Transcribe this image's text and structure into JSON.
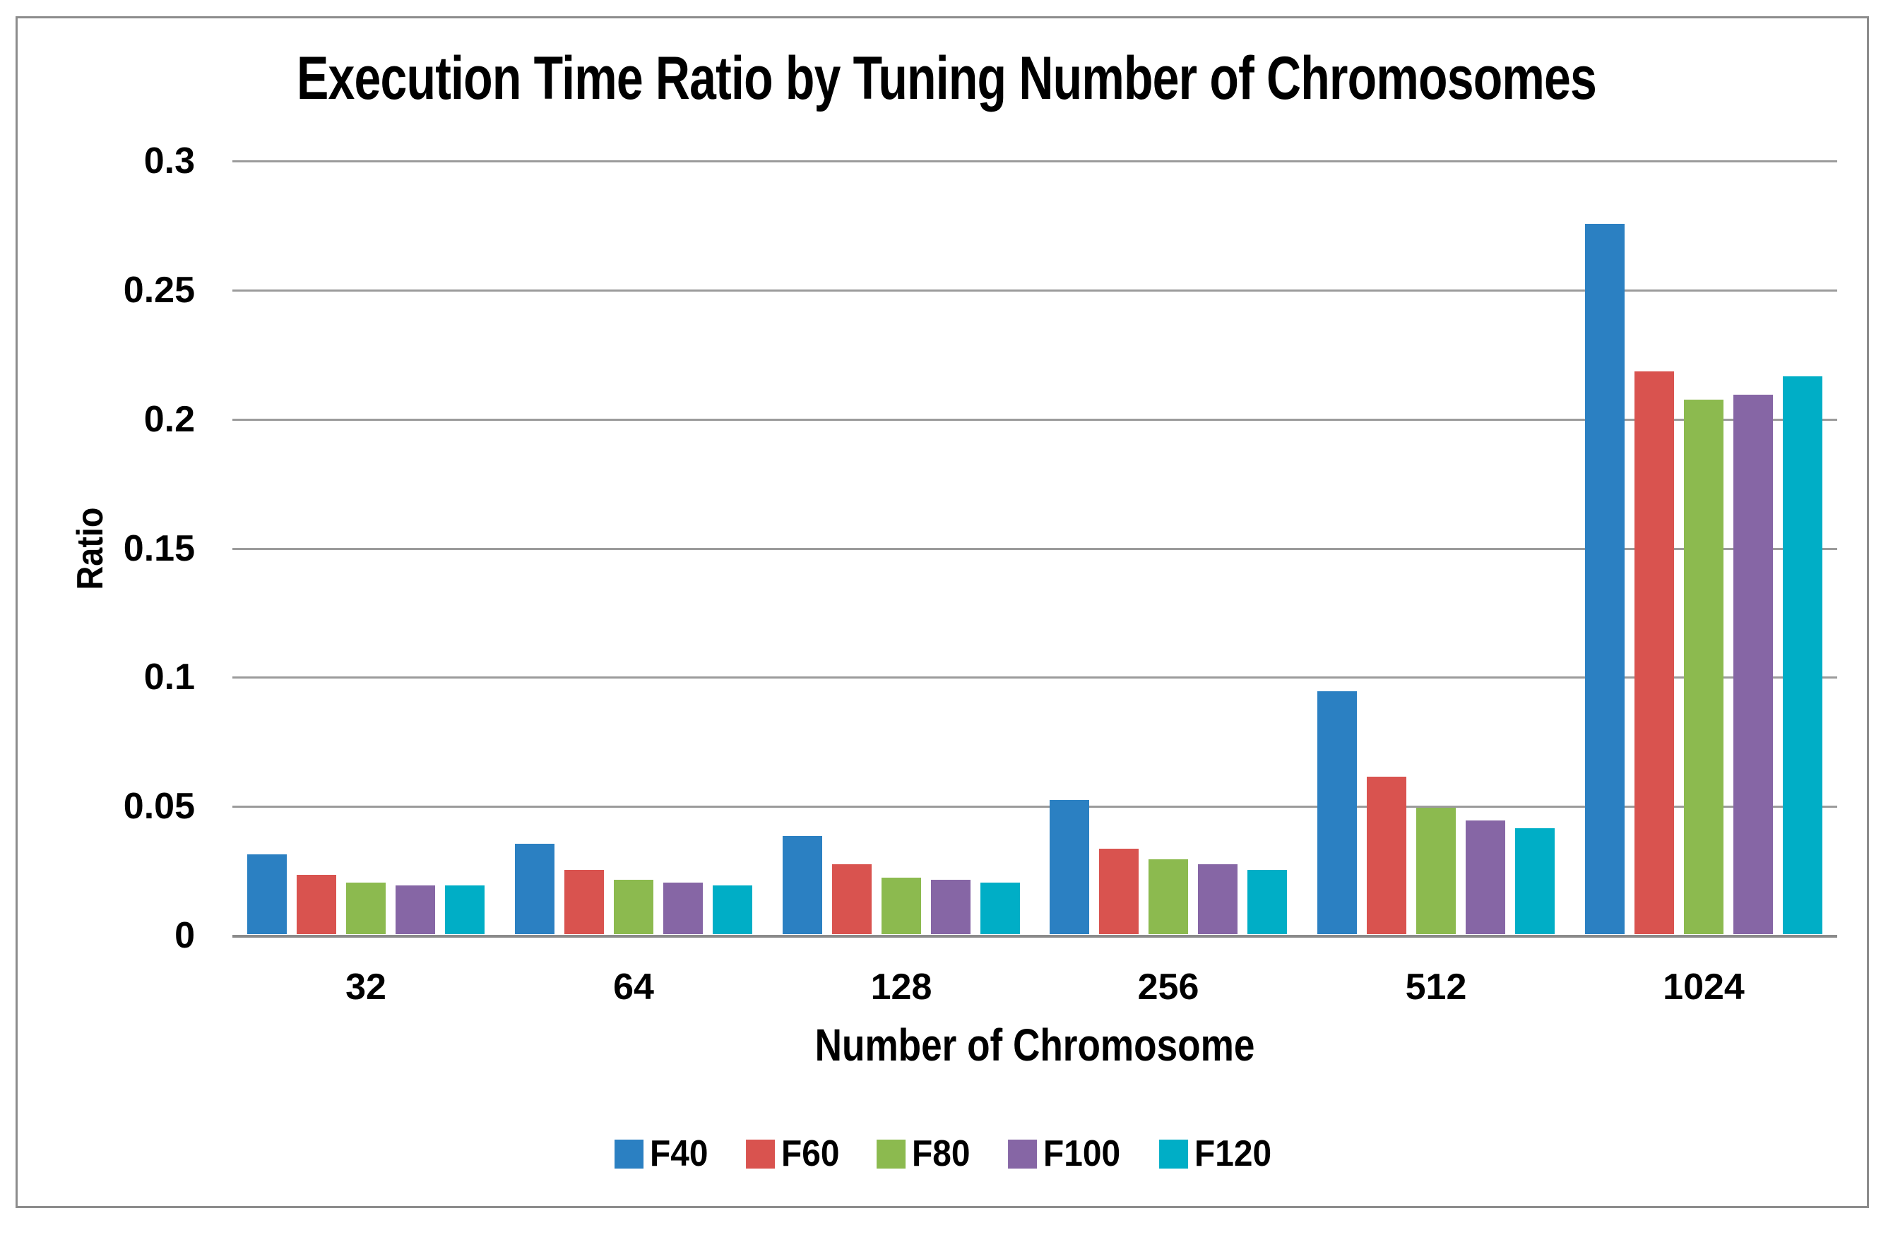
{
  "frame": {
    "border_color": "#8C8C8C",
    "background_color": "#FFFFFF"
  },
  "chart_data": {
    "type": "bar",
    "title": "Execution Time Ratio by Tuning Number of Chromosomes",
    "xlabel": "Number of Chromosome",
    "ylabel": "Ratio",
    "categories": [
      "32",
      "64",
      "128",
      "256",
      "512",
      "1024"
    ],
    "series": [
      {
        "name": "F40",
        "color": "#2B80C2",
        "values": [
          0.031,
          0.035,
          0.038,
          0.052,
          0.094,
          0.275
        ]
      },
      {
        "name": "F60",
        "color": "#D9534F",
        "values": [
          0.023,
          0.025,
          0.027,
          0.033,
          0.061,
          0.218
        ]
      },
      {
        "name": "F80",
        "color": "#8CBA4F",
        "values": [
          0.02,
          0.021,
          0.022,
          0.029,
          0.049,
          0.207
        ]
      },
      {
        "name": "F100",
        "color": "#8666A5",
        "values": [
          0.019,
          0.02,
          0.021,
          0.027,
          0.044,
          0.209
        ]
      },
      {
        "name": "F120",
        "color": "#00AEC6",
        "values": [
          0.019,
          0.019,
          0.02,
          0.025,
          0.041,
          0.216
        ]
      }
    ],
    "ylim": [
      0,
      0.3
    ],
    "yticks": [
      "0",
      "0.05",
      "0.1",
      "0.15",
      "0.2",
      "0.25",
      "0.3"
    ],
    "grid": true,
    "legend_position": "bottom",
    "gridline_color": "#9B9B9B",
    "axis_line_color": "#8A8A8A",
    "text_color": "#000000"
  }
}
